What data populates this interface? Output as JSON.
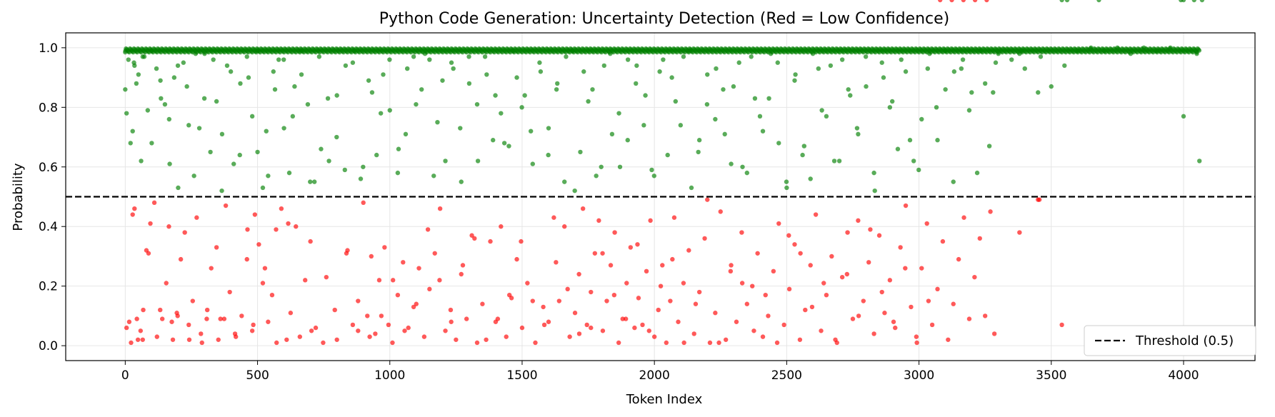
{
  "chart_data": {
    "type": "scatter",
    "title": "Python Code Generation: Uncertainty Detection (Red = Low Confidence)",
    "xlabel": "Token Index",
    "ylabel": "Probability",
    "xlim": [
      -225,
      4270
    ],
    "ylim": [
      -0.05,
      1.05
    ],
    "xticks": [
      0,
      500,
      1000,
      1500,
      2000,
      2500,
      3000,
      3500,
      4000
    ],
    "yticks": [
      "0.0",
      "0.2",
      "0.4",
      "0.6",
      "0.8",
      "1.0"
    ],
    "grid": true,
    "legend_position": "bottom-right",
    "threshold": {
      "value": 0.5,
      "label": "Threshold (0.5)"
    },
    "num_tokens": 4060,
    "series": [
      {
        "color": "#008000",
        "condition": "probability >= 0.5"
      },
      {
        "color": "#ff0000",
        "condition": "probability < 0.5"
      }
    ],
    "high_confidence_x": [
      0,
      5,
      12,
      20,
      28,
      35,
      42,
      50,
      60,
      72,
      85,
      100,
      118,
      135,
      150,
      168,
      185,
      200,
      220,
      240,
      260,
      280,
      300,
      322,
      345,
      365,
      385,
      410,
      435,
      460,
      480,
      500,
      520,
      540,
      560,
      580,
      600,
      620,
      640,
      665,
      690,
      715,
      740,
      770,
      800,
      830,
      860,
      890,
      920,
      950,
      975,
      1000,
      1030,
      1060,
      1090,
      1120,
      1150,
      1180,
      1210,
      1240,
      1270,
      1300,
      1330,
      1360,
      1390,
      1420,
      1450,
      1480,
      1510,
      1540,
      1570,
      1600,
      1630,
      1660,
      1690,
      1720,
      1750,
      1780,
      1810,
      1840,
      1870,
      1900,
      1930,
      1960,
      1990,
      2020,
      2050,
      2080,
      2110,
      2140,
      2170,
      2200,
      2230,
      2260,
      2290,
      2320,
      2350,
      2380,
      2410,
      2440,
      2470,
      2500,
      2530,
      2560,
      2590,
      2620,
      2650,
      2680,
      2710,
      2740,
      2770,
      2800,
      2830,
      2860,
      2890,
      2920,
      2950,
      2980,
      3010,
      3040,
      3070,
      3100,
      3130,
      3160,
      3190,
      3220,
      3250,
      3280,
      3300,
      3350,
      3400,
      3450,
      3500,
      3550,
      3600,
      3650,
      3700,
      3750,
      3800,
      3850,
      3900,
      3950,
      4000,
      4050,
      4060,
      1,
      33,
      66,
      99,
      133,
      166,
      199,
      233,
      266,
      299,
      333,
      366,
      399,
      433,
      466,
      499,
      533,
      566,
      599,
      633,
      666,
      699,
      733,
      766,
      799,
      833,
      866,
      899,
      933,
      966,
      999,
      1033,
      1066,
      1099,
      1133,
      1166,
      1199,
      1233,
      1266,
      1299,
      1333,
      1366,
      1399,
      1433,
      1466,
      1499,
      1533,
      1566,
      1599,
      1633,
      1666,
      1699,
      1733,
      1766,
      1799,
      1833,
      1866,
      1899,
      1933,
      1966,
      1999,
      2033,
      2066,
      2099,
      2133,
      2166,
      2199,
      2233,
      2266,
      2299,
      2333,
      2366,
      2399,
      2433,
      2466,
      2499,
      2533,
      2566,
      2599,
      2633,
      2666,
      2699,
      2733,
      2766,
      2799,
      2833,
      2866,
      2899,
      2933,
      2966,
      2999,
      3033,
      3066,
      3099,
      3133,
      3166,
      3199,
      3233,
      3266,
      3290,
      3380,
      3390,
      3460,
      3540,
      3560,
      3680,
      3990,
      4000,
      4040,
      4070
    ],
    "high_confidence_y": [
      0.86,
      0.78,
      0.96,
      0.68,
      0.72,
      0.94,
      0.88,
      0.91,
      0.62,
      0.97,
      0.79,
      0.68,
      0.93,
      0.83,
      0.81,
      0.61,
      0.9,
      0.53,
      0.95,
      0.74,
      0.57,
      0.73,
      0.98,
      0.65,
      0.82,
      0.52,
      0.94,
      0.61,
      0.88,
      0.97,
      0.77,
      0.65,
      0.53,
      0.57,
      0.92,
      0.96,
      0.73,
      0.58,
      0.87,
      0.99,
      0.81,
      0.55,
      0.66,
      0.62,
      0.84,
      0.59,
      0.95,
      0.56,
      0.89,
      0.64,
      0.91,
      0.79,
      0.58,
      0.71,
      0.97,
      0.86,
      0.96,
      0.75,
      0.62,
      0.93,
      0.55,
      0.88,
      0.81,
      0.97,
      0.69,
      0.78,
      0.67,
      0.9,
      0.84,
      0.61,
      0.92,
      0.73,
      0.86,
      0.55,
      0.99,
      0.65,
      0.82,
      0.57,
      0.94,
      0.71,
      0.6,
      0.96,
      0.88,
      0.74,
      0.59,
      0.92,
      0.64,
      0.82,
      0.97,
      0.53,
      0.69,
      0.91,
      0.76,
      0.86,
      0.61,
      0.95,
      0.58,
      0.83,
      0.72,
      0.98,
      0.68,
      0.53,
      0.89,
      0.64,
      0.56,
      0.93,
      0.77,
      0.62,
      0.96,
      0.84,
      0.71,
      0.87,
      0.58,
      0.95,
      0.8,
      0.66,
      0.92,
      0.62,
      0.76,
      0.98,
      0.69,
      0.86,
      0.55,
      0.93,
      0.79,
      0.58,
      0.88,
      0.85,
      0.98,
      0.96,
      0.93,
      0.85,
      0.87,
      0.94,
      0.99,
      1.0,
      0.99,
      1.0,
      0.98,
      1.0,
      0.99,
      1.0,
      0.77,
      0.98,
      0.62,
      0.99,
      0.95,
      0.97,
      0.99,
      0.89,
      0.76,
      0.94,
      0.87,
      0.98,
      0.83,
      0.96,
      0.71,
      0.92,
      0.64,
      0.9,
      0.99,
      0.72,
      0.86,
      0.96,
      0.77,
      0.91,
      0.55,
      0.97,
      0.83,
      0.7,
      0.94,
      0.99,
      0.6,
      0.85,
      0.78,
      0.96,
      0.66,
      0.93,
      0.81,
      0.98,
      0.57,
      0.89,
      0.95,
      0.73,
      0.97,
      0.62,
      0.91,
      0.84,
      0.68,
      0.99,
      0.8,
      0.72,
      0.95,
      0.64,
      0.88,
      0.97,
      0.52,
      0.92,
      0.86,
      0.6,
      0.98,
      0.78,
      0.69,
      0.94,
      0.84,
      0.57,
      0.96,
      0.9,
      0.74,
      0.99,
      0.65,
      0.81,
      0.93,
      0.71,
      0.87,
      0.6,
      0.97,
      0.77,
      0.83,
      0.95,
      0.55,
      0.91,
      0.67,
      0.98,
      0.79,
      0.94,
      0.62,
      0.86,
      0.73,
      0.97,
      0.52,
      0.9,
      0.82,
      0.96,
      0.69,
      0.59,
      0.93,
      0.8,
      0.99,
      0.92,
      0.96,
      0.85,
      0.99,
      0.67,
      0.95,
      0.98,
      0.99,
      0.97
    ],
    "low_confidence_x": [
      5,
      15,
      28,
      35,
      48,
      58,
      68,
      80,
      95,
      110,
      120,
      140,
      155,
      165,
      180,
      195,
      210,
      225,
      240,
      255,
      270,
      290,
      310,
      325,
      345,
      360,
      380,
      395,
      415,
      440,
      460,
      480,
      490,
      505,
      520,
      540,
      555,
      570,
      590,
      610,
      625,
      645,
      680,
      700,
      720,
      760,
      800,
      840,
      860,
      880,
      900,
      915,
      930,
      945,
      960,
      980,
      995,
      1010,
      1030,
      1050,
      1070,
      1090,
      1110,
      1130,
      1150,
      1170,
      1190,
      1210,
      1230,
      1250,
      1270,
      1290,
      1310,
      1330,
      1350,
      1380,
      1400,
      1420,
      1440,
      1460,
      1480,
      1500,
      1520,
      1550,
      1580,
      1600,
      1620,
      1640,
      1660,
      1680,
      1700,
      1715,
      1730,
      1745,
      1760,
      1775,
      1790,
      1805,
      1820,
      1835,
      1850,
      1865,
      1880,
      1895,
      1910,
      1925,
      1940,
      1955,
      1970,
      1985,
      2000,
      2015,
      2030,
      2045,
      2060,
      2075,
      2090,
      2110,
      2130,
      2150,
      2170,
      2190,
      2210,
      2230,
      2250,
      2270,
      2290,
      2310,
      2330,
      2350,
      2370,
      2390,
      2410,
      2430,
      2450,
      2470,
      2490,
      2510,
      2530,
      2550,
      2570,
      2590,
      2610,
      2630,
      2650,
      2670,
      2690,
      2710,
      2730,
      2750,
      2770,
      2790,
      2810,
      2830,
      2850,
      2870,
      2890,
      2910,
      2930,
      2950,
      2970,
      2990,
      3010,
      3030,
      3050,
      3070,
      3090,
      3110,
      3130,
      3150,
      3170,
      3190,
      3210,
      3230,
      3250,
      3270,
      3285,
      3380,
      3450,
      3455,
      3540,
      22,
      44,
      66,
      88,
      132,
      176,
      198,
      242,
      286,
      308,
      352,
      374,
      418,
      462,
      484,
      528,
      572,
      616,
      660,
      704,
      748,
      792,
      836,
      880,
      924,
      968,
      1012,
      1056,
      1100,
      1144,
      1188,
      1232,
      1276,
      1320,
      1364,
      1408,
      1452,
      1496,
      1540,
      1584,
      1628,
      1672,
      1716,
      1760,
      1804,
      1848,
      1892,
      1936,
      1980,
      2024,
      2068,
      2112,
      2156,
      2200,
      2244,
      2288,
      2332,
      2376,
      2420,
      2464,
      2508,
      2552,
      2596,
      2640,
      2684,
      2728,
      2772,
      2816,
      2860,
      2904,
      2948,
      2992,
      3036,
      3080,
      3124,
      3168,
      3212,
      3256
    ],
    "low_confidence_y": [
      0.06,
      0.08,
      0.44,
      0.46,
      0.02,
      0.05,
      0.12,
      0.32,
      0.41,
      0.48,
      0.03,
      0.09,
      0.21,
      0.4,
      0.02,
      0.11,
      0.29,
      0.38,
      0.07,
      0.15,
      0.43,
      0.01,
      0.12,
      0.26,
      0.33,
      0.09,
      0.47,
      0.18,
      0.04,
      0.1,
      0.29,
      0.05,
      0.44,
      0.34,
      0.21,
      0.08,
      0.17,
      0.39,
      0.46,
      0.02,
      0.11,
      0.4,
      0.22,
      0.35,
      0.06,
      0.23,
      0.02,
      0.32,
      0.07,
      0.15,
      0.48,
      0.1,
      0.3,
      0.04,
      0.22,
      0.33,
      0.07,
      0.01,
      0.17,
      0.28,
      0.06,
      0.13,
      0.26,
      0.03,
      0.19,
      0.31,
      0.46,
      0.05,
      0.12,
      0.02,
      0.24,
      0.09,
      0.37,
      0.01,
      0.14,
      0.35,
      0.08,
      0.4,
      0.03,
      0.16,
      0.29,
      0.06,
      0.21,
      0.01,
      0.13,
      0.08,
      0.43,
      0.15,
      0.4,
      0.03,
      0.11,
      0.24,
      0.46,
      0.07,
      0.18,
      0.31,
      0.42,
      0.05,
      0.15,
      0.27,
      0.38,
      0.01,
      0.09,
      0.21,
      0.33,
      0.06,
      0.16,
      0.07,
      0.25,
      0.42,
      0.03,
      0.12,
      0.27,
      0.01,
      0.15,
      0.43,
      0.08,
      0.21,
      0.32,
      0.04,
      0.18,
      0.36,
      0.01,
      0.11,
      0.45,
      0.02,
      0.27,
      0.08,
      0.38,
      0.14,
      0.2,
      0.31,
      0.03,
      0.1,
      0.25,
      0.41,
      0.07,
      0.19,
      0.34,
      0.02,
      0.12,
      0.27,
      0.44,
      0.05,
      0.17,
      0.3,
      0.01,
      0.23,
      0.38,
      0.09,
      0.42,
      0.15,
      0.28,
      0.04,
      0.37,
      0.11,
      0.22,
      0.06,
      0.33,
      0.47,
      0.13,
      0.03,
      0.26,
      0.41,
      0.07,
      0.19,
      0.35,
      0.02,
      0.14,
      0.29,
      0.43,
      0.09,
      0.23,
      0.36,
      0.1,
      0.45,
      0.04,
      0.38,
      0.49,
      0.49,
      0.07,
      0.01,
      0.09,
      0.02,
      0.31,
      0.12,
      0.08,
      0.1,
      0.02,
      0.04,
      0.09,
      0.02,
      0.09,
      0.03,
      0.39,
      0.07,
      0.26,
      0.01,
      0.41,
      0.03,
      0.05,
      0.01,
      0.12,
      0.31,
      0.05,
      0.03,
      0.1,
      0.22,
      0.05,
      0.14,
      0.39,
      0.22,
      0.08,
      0.27,
      0.36,
      0.02,
      0.09,
      0.17,
      0.35,
      0.15,
      0.07,
      0.28,
      0.19,
      0.04,
      0.06,
      0.31,
      0.17,
      0.09,
      0.34,
      0.05,
      0.2,
      0.29,
      0.01,
      0.14,
      0.49,
      0.01,
      0.25,
      0.21,
      0.05,
      0.17,
      0.01,
      0.37,
      0.31,
      0.13,
      0.21,
      0.02,
      0.24,
      0.1,
      0.39,
      0.18,
      0.08,
      0.26,
      0.01,
      0.15
    ]
  }
}
